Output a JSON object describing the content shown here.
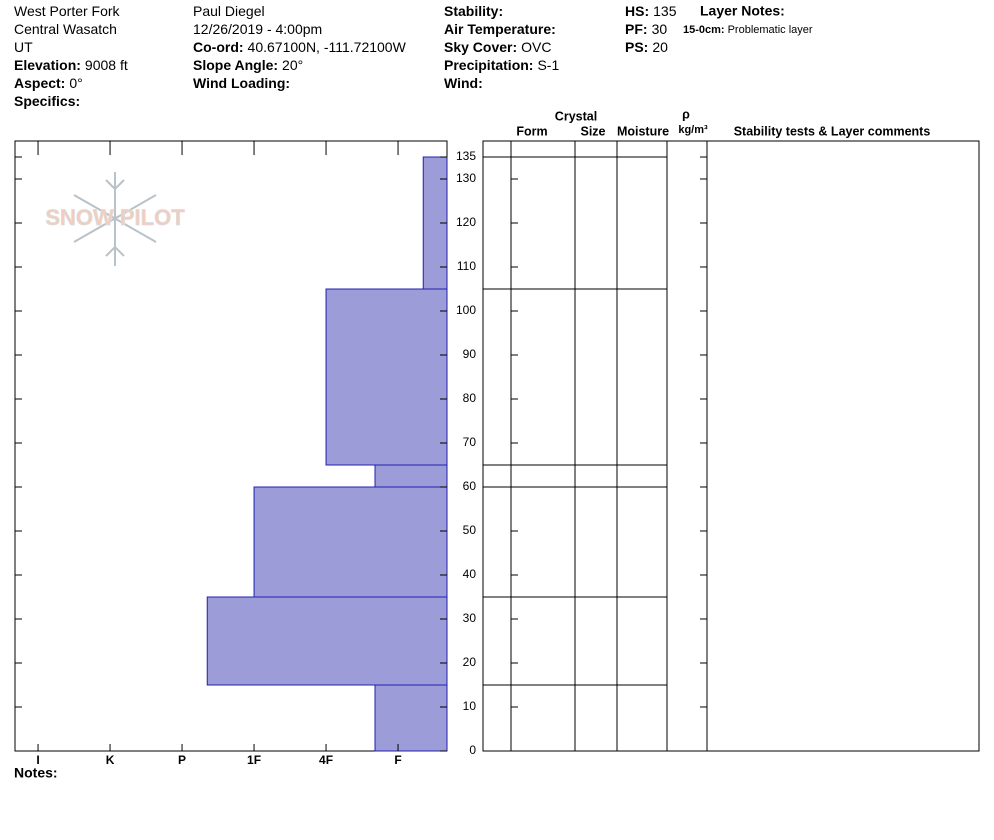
{
  "header": {
    "columns": [
      [
        {
          "value": "West Porter Fork"
        },
        {
          "value": "Central Wasatch"
        },
        {
          "value": "UT"
        },
        {
          "label": "Elevation:",
          "value": "9008 ft"
        },
        {
          "label": "Aspect:",
          "value": "0°"
        },
        {
          "label": "Specifics:"
        }
      ],
      [
        {
          "value": "Paul Diegel"
        },
        {
          "value": "12/26/2019 - 4:00pm"
        },
        {
          "label": "Co-ord:",
          "value": "40.67100N, -111.72100W"
        },
        {
          "label": "Slope Angle:",
          "value": "20°"
        },
        {
          "label": "Wind Loading:"
        }
      ],
      [
        {
          "label": "Stability:"
        },
        {
          "label": "Air Temperature:"
        },
        {
          "label": "Sky Cover:",
          "value": "OVC"
        },
        {
          "label": "Precipitation:",
          "value": "S-1"
        },
        {
          "label": "Wind:"
        }
      ],
      [
        {
          "label": "HS:",
          "value": "135"
        },
        {
          "label": "PF:",
          "value": "30"
        },
        {
          "label": "PS:",
          "value": "20"
        }
      ]
    ],
    "layer_notes": {
      "title": "Layer Notes:",
      "entries": [
        {
          "range": "15-0cm:",
          "text": "Problematic layer"
        }
      ]
    }
  },
  "logo": "SNOW PILOT",
  "chart_data": {
    "type": "bar",
    "orientation": "horizontal",
    "bottoms": [
      0,
      15,
      35,
      60,
      65,
      105
    ],
    "tops": [
      15,
      35,
      60,
      65,
      105,
      135
    ],
    "values": [
      1.32,
      3.65,
      3.0,
      1.32,
      2.0,
      0.65
    ],
    "color": "#9c9cd8",
    "xlim": [
      6.32,
      0.32
    ],
    "xticks": [
      {
        "value": 6,
        "label": "I"
      },
      {
        "value": 5,
        "label": "K"
      },
      {
        "value": 4,
        "label": "P"
      },
      {
        "value": 3,
        "label": "1F"
      },
      {
        "value": 2,
        "label": "4F"
      },
      {
        "value": 1,
        "label": "F"
      }
    ],
    "ylim": [
      0,
      135
    ],
    "yticks": [
      0,
      10,
      20,
      30,
      40,
      50,
      60,
      70,
      80,
      90,
      100,
      110,
      120,
      130,
      135
    ]
  },
  "table": {
    "headers": {
      "crystal": "Crystal",
      "form": "Form",
      "size": "Size",
      "moisture": "Moisture",
      "rho": "ρ",
      "density_unit": "kg/m³",
      "comments": "Stability tests & Layer comments"
    }
  },
  "notes_label": "Notes:"
}
